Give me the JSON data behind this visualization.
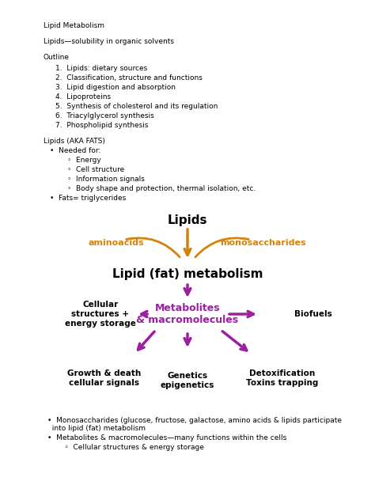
{
  "bg_color": "#ffffff",
  "text_color": "#000000",
  "orange_color": "#d4820a",
  "purple_color": "#9b1fa0",
  "fs_body": 6.5,
  "fs_diagram_lipids": 11,
  "fs_diagram_fat": 11,
  "fs_diagram_aminoacids": 8,
  "fs_diagram_metabolites": 9,
  "fs_diagram_labels": 7.5,
  "outline_items": [
    "Lipids: dietary sources",
    "Classification, structure and functions",
    "Lipid digestion and absorption",
    "Lipoproteins",
    "Synthesis of cholesterol and its regulation",
    "Triacylglycerol synthesis",
    "Phospholipid synthesis"
  ],
  "sub_bullets": [
    "Energy",
    "Cell structure",
    "Information signals",
    "Body shape and protection, thermal isolation, etc."
  ],
  "bottom_bullet1": "Monosaccharides (glucose, fructose, galactose, amino acids & lipids participate\n  into lipid (fat) metabolism",
  "bottom_bullet2": "Metabolites & macromolecules—many functions within the cells",
  "bottom_sub": "    ◦  Cellular structures & energy storage"
}
